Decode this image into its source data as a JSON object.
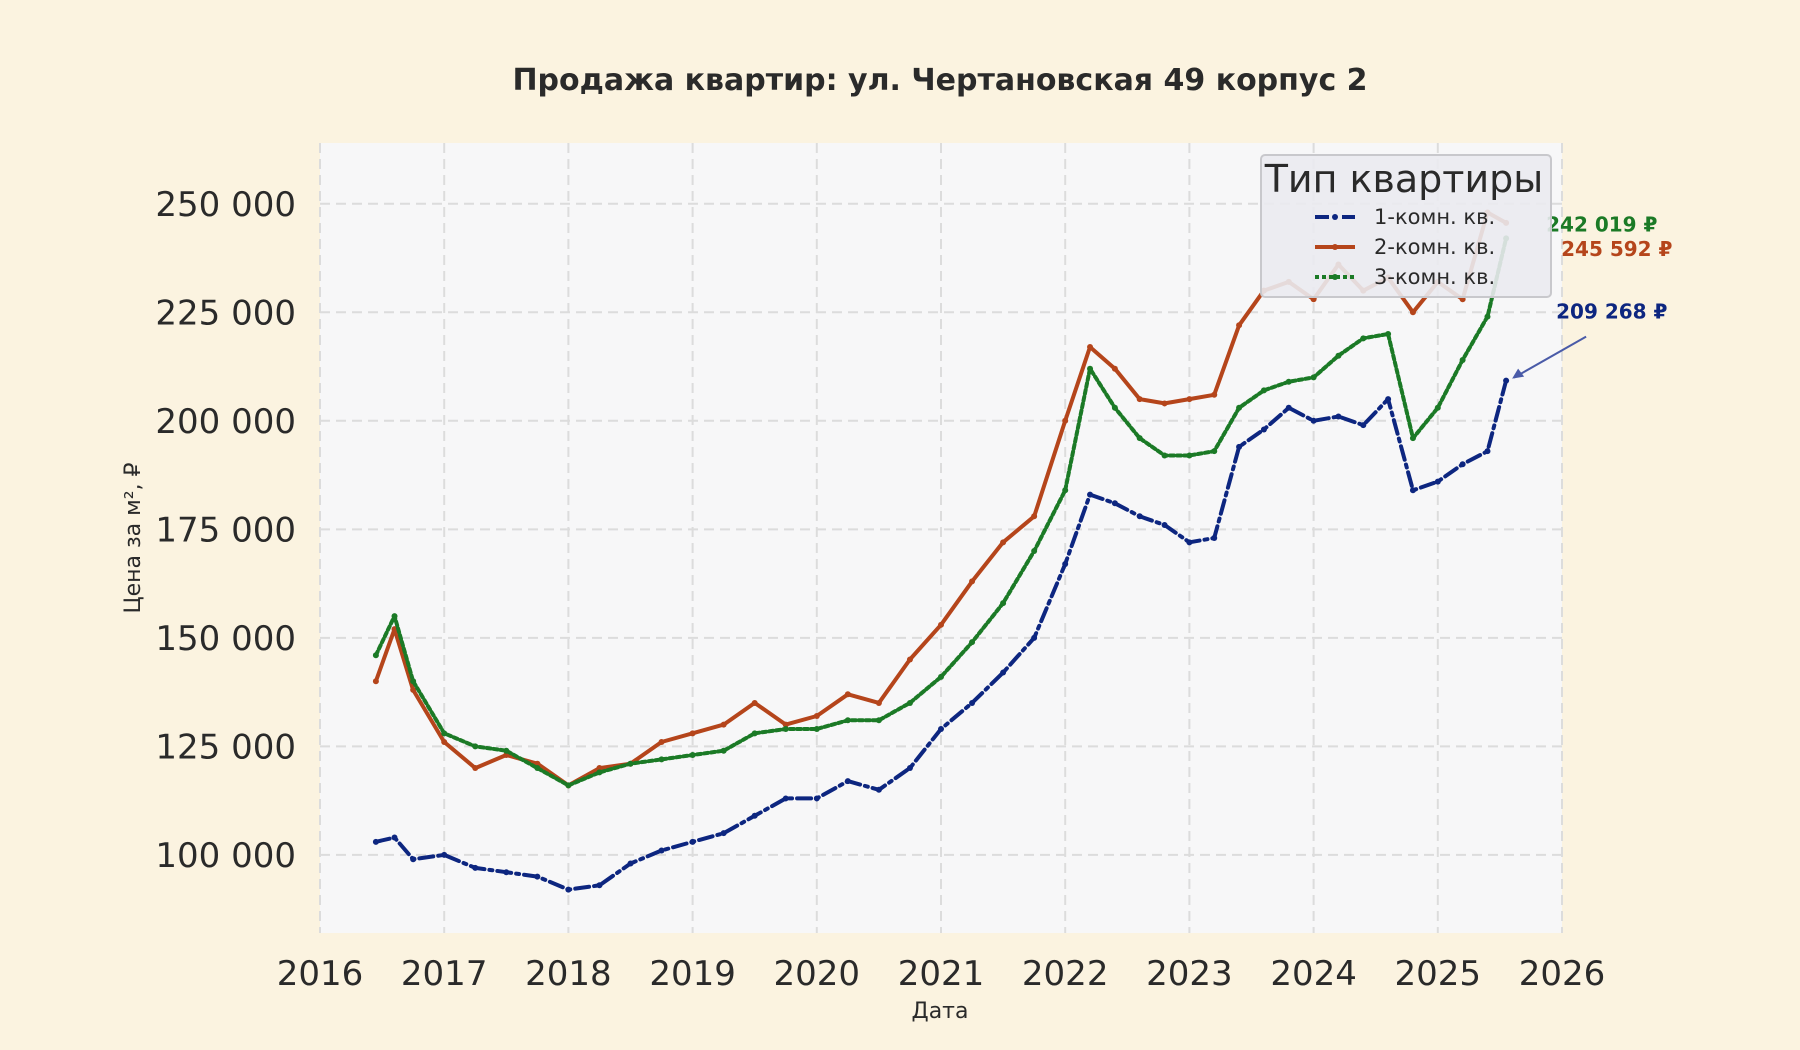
{
  "chart_data": {
    "type": "line",
    "title": "Продажа квартир: ул. Чертановская 49 корпус 2",
    "xlabel": "Дата",
    "ylabel": "Цена за м², ₽",
    "xlim": [
      2016,
      2026
    ],
    "ylim": [
      82000,
      264000
    ],
    "x_ticks": [
      "2016",
      "2017",
      "2018",
      "2019",
      "2020",
      "2021",
      "2022",
      "2023",
      "2024",
      "2025",
      "2026"
    ],
    "y_ticks": [
      "100 000",
      "125 000",
      "150 000",
      "175 000",
      "200 000",
      "225 000",
      "250 000"
    ],
    "y_tick_values": [
      100000,
      125000,
      150000,
      175000,
      200000,
      225000,
      250000
    ],
    "grid": true,
    "legend": {
      "title": "Тип квартиры",
      "placement": "top-right"
    },
    "x": [
      2016.45,
      2016.6,
      2016.75,
      2017.0,
      2017.25,
      2017.5,
      2017.75,
      2018.0,
      2018.25,
      2018.5,
      2018.75,
      2019.0,
      2019.25,
      2019.5,
      2019.75,
      2020.0,
      2020.25,
      2020.5,
      2020.75,
      2021.0,
      2021.25,
      2021.5,
      2021.75,
      2022.0,
      2022.2,
      2022.4,
      2022.6,
      2022.8,
      2023.0,
      2023.2,
      2023.4,
      2023.6,
      2023.8,
      2024.0,
      2024.2,
      2024.4,
      2024.6,
      2024.8,
      2025.0,
      2025.2,
      2025.4,
      2025.55
    ],
    "series": [
      {
        "name": "1-комн. кв.",
        "color": "#0d2680",
        "style": "dashdot",
        "values": [
          103000,
          104000,
          99000,
          100000,
          97000,
          96000,
          95000,
          92000,
          93000,
          98000,
          101000,
          103000,
          105000,
          109000,
          113000,
          113000,
          117000,
          115000,
          120000,
          129000,
          135000,
          142000,
          150000,
          167000,
          183000,
          181000,
          178000,
          176000,
          172000,
          173000,
          194000,
          198000,
          203000,
          200000,
          201000,
          199000,
          205000,
          184000,
          186000,
          190000,
          193000,
          209268
        ]
      },
      {
        "name": "2-комн. кв.",
        "color": "#b5451b",
        "style": "solid",
        "values": [
          140000,
          152000,
          138000,
          126000,
          120000,
          123000,
          121000,
          116000,
          120000,
          121000,
          126000,
          128000,
          130000,
          135000,
          130000,
          132000,
          137000,
          135000,
          145000,
          153000,
          163000,
          172000,
          178000,
          200000,
          217000,
          212000,
          205000,
          204000,
          205000,
          206000,
          222000,
          230000,
          232000,
          228000,
          236000,
          230000,
          233000,
          225000,
          232000,
          228000,
          248000,
          245592
        ]
      },
      {
        "name": "3-комн. кв.",
        "color": "#1b7a26",
        "style": "dotted",
        "values": [
          146000,
          155000,
          140000,
          128000,
          125000,
          124000,
          120000,
          116000,
          119000,
          121000,
          122000,
          123000,
          124000,
          128000,
          129000,
          129000,
          131000,
          131000,
          135000,
          141000,
          149000,
          158000,
          170000,
          184000,
          212000,
          203000,
          196000,
          192000,
          192000,
          193000,
          203000,
          207000,
          209000,
          210000,
          215000,
          219000,
          220000,
          196000,
          203000,
          214000,
          224000,
          242019
        ]
      }
    ],
    "annotations": [
      {
        "series": 0,
        "text": "209 268 ₽",
        "color": "#0d2680"
      },
      {
        "series": 1,
        "text": "245 592 ₽",
        "color": "#b5451b"
      },
      {
        "series": 2,
        "text": "242 019 ₽",
        "color": "#1b7a26"
      }
    ]
  }
}
